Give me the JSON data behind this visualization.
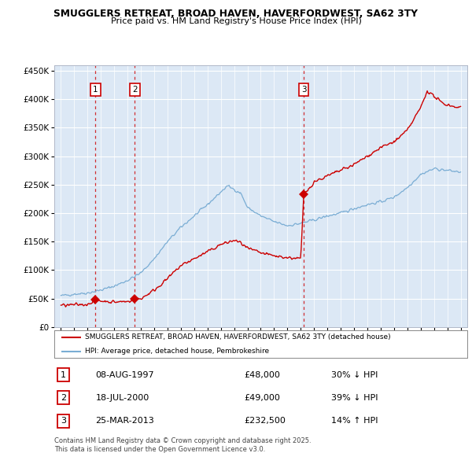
{
  "title_line1": "SMUGGLERS RETREAT, BROAD HAVEN, HAVERFORDWEST, SA62 3TY",
  "title_line2": "Price paid vs. HM Land Registry's House Price Index (HPI)",
  "fig_bg_color": "#ffffff",
  "plot_bg_color": "#dce8f5",
  "grid_color": "#ffffff",
  "red_line_color": "#cc0000",
  "blue_line_color": "#7aadd4",
  "sale_points": [
    {
      "year": 1997.6,
      "price": 48000,
      "label": "1"
    },
    {
      "year": 2000.54,
      "price": 49000,
      "label": "2"
    },
    {
      "year": 2013.23,
      "price": 232500,
      "label": "3"
    }
  ],
  "legend_red": "SMUGGLERS RETREAT, BROAD HAVEN, HAVERFORDWEST, SA62 3TY (detached house)",
  "legend_blue": "HPI: Average price, detached house, Pembrokeshire",
  "table_rows": [
    {
      "num": "1",
      "date": "08-AUG-1997",
      "price": "£48,000",
      "hpi": "30% ↓ HPI"
    },
    {
      "num": "2",
      "date": "18-JUL-2000",
      "price": "£49,000",
      "hpi": "39% ↓ HPI"
    },
    {
      "num": "3",
      "date": "25-MAR-2013",
      "price": "£232,500",
      "hpi": "14% ↑ HPI"
    }
  ],
  "footnote": "Contains HM Land Registry data © Crown copyright and database right 2025.\nThis data is licensed under the Open Government Licence v3.0.",
  "ylim": [
    0,
    460000
  ],
  "xlim": [
    1994.5,
    2025.5
  ],
  "hpi_base_points": [
    [
      1995.0,
      55000
    ],
    [
      1996.0,
      58000
    ],
    [
      1997.0,
      60000
    ],
    [
      1998.0,
      65000
    ],
    [
      1999.0,
      72000
    ],
    [
      2000.0,
      82000
    ],
    [
      2001.0,
      95000
    ],
    [
      2002.0,
      120000
    ],
    [
      2003.0,
      150000
    ],
    [
      2004.0,
      175000
    ],
    [
      2005.0,
      195000
    ],
    [
      2006.0,
      215000
    ],
    [
      2007.5,
      248000
    ],
    [
      2008.5,
      235000
    ],
    [
      2009.0,
      210000
    ],
    [
      2010.0,
      195000
    ],
    [
      2011.0,
      185000
    ],
    [
      2012.0,
      178000
    ],
    [
      2013.0,
      182000
    ],
    [
      2014.0,
      188000
    ],
    [
      2015.0,
      195000
    ],
    [
      2016.0,
      200000
    ],
    [
      2017.0,
      208000
    ],
    [
      2018.0,
      215000
    ],
    [
      2019.0,
      220000
    ],
    [
      2020.0,
      228000
    ],
    [
      2021.0,
      245000
    ],
    [
      2022.0,
      268000
    ],
    [
      2023.0,
      278000
    ],
    [
      2024.0,
      275000
    ],
    [
      2025.0,
      272000
    ]
  ],
  "prop_base_points": [
    [
      1995.0,
      38000
    ],
    [
      1996.0,
      39000
    ],
    [
      1997.0,
      40000
    ],
    [
      1997.6,
      48000
    ],
    [
      1998.0,
      46000
    ],
    [
      1999.0,
      44000
    ],
    [
      2000.0,
      45000
    ],
    [
      2000.54,
      49000
    ],
    [
      2001.0,
      50000
    ],
    [
      2002.0,
      65000
    ],
    [
      2003.0,
      85000
    ],
    [
      2004.0,
      108000
    ],
    [
      2005.0,
      120000
    ],
    [
      2006.0,
      132000
    ],
    [
      2007.0,
      145000
    ],
    [
      2008.0,
      152000
    ],
    [
      2008.5,
      148000
    ],
    [
      2009.0,
      138000
    ],
    [
      2010.0,
      130000
    ],
    [
      2011.0,
      125000
    ],
    [
      2012.0,
      122000
    ],
    [
      2013.0,
      120000
    ],
    [
      2013.23,
      232500
    ],
    [
      2013.5,
      240000
    ],
    [
      2014.0,
      255000
    ],
    [
      2015.0,
      265000
    ],
    [
      2016.0,
      275000
    ],
    [
      2017.0,
      285000
    ],
    [
      2018.0,
      300000
    ],
    [
      2019.0,
      315000
    ],
    [
      2020.0,
      325000
    ],
    [
      2021.0,
      345000
    ],
    [
      2022.0,
      385000
    ],
    [
      2022.5,
      415000
    ],
    [
      2023.0,
      405000
    ],
    [
      2023.5,
      395000
    ],
    [
      2024.0,
      390000
    ],
    [
      2025.0,
      385000
    ]
  ]
}
